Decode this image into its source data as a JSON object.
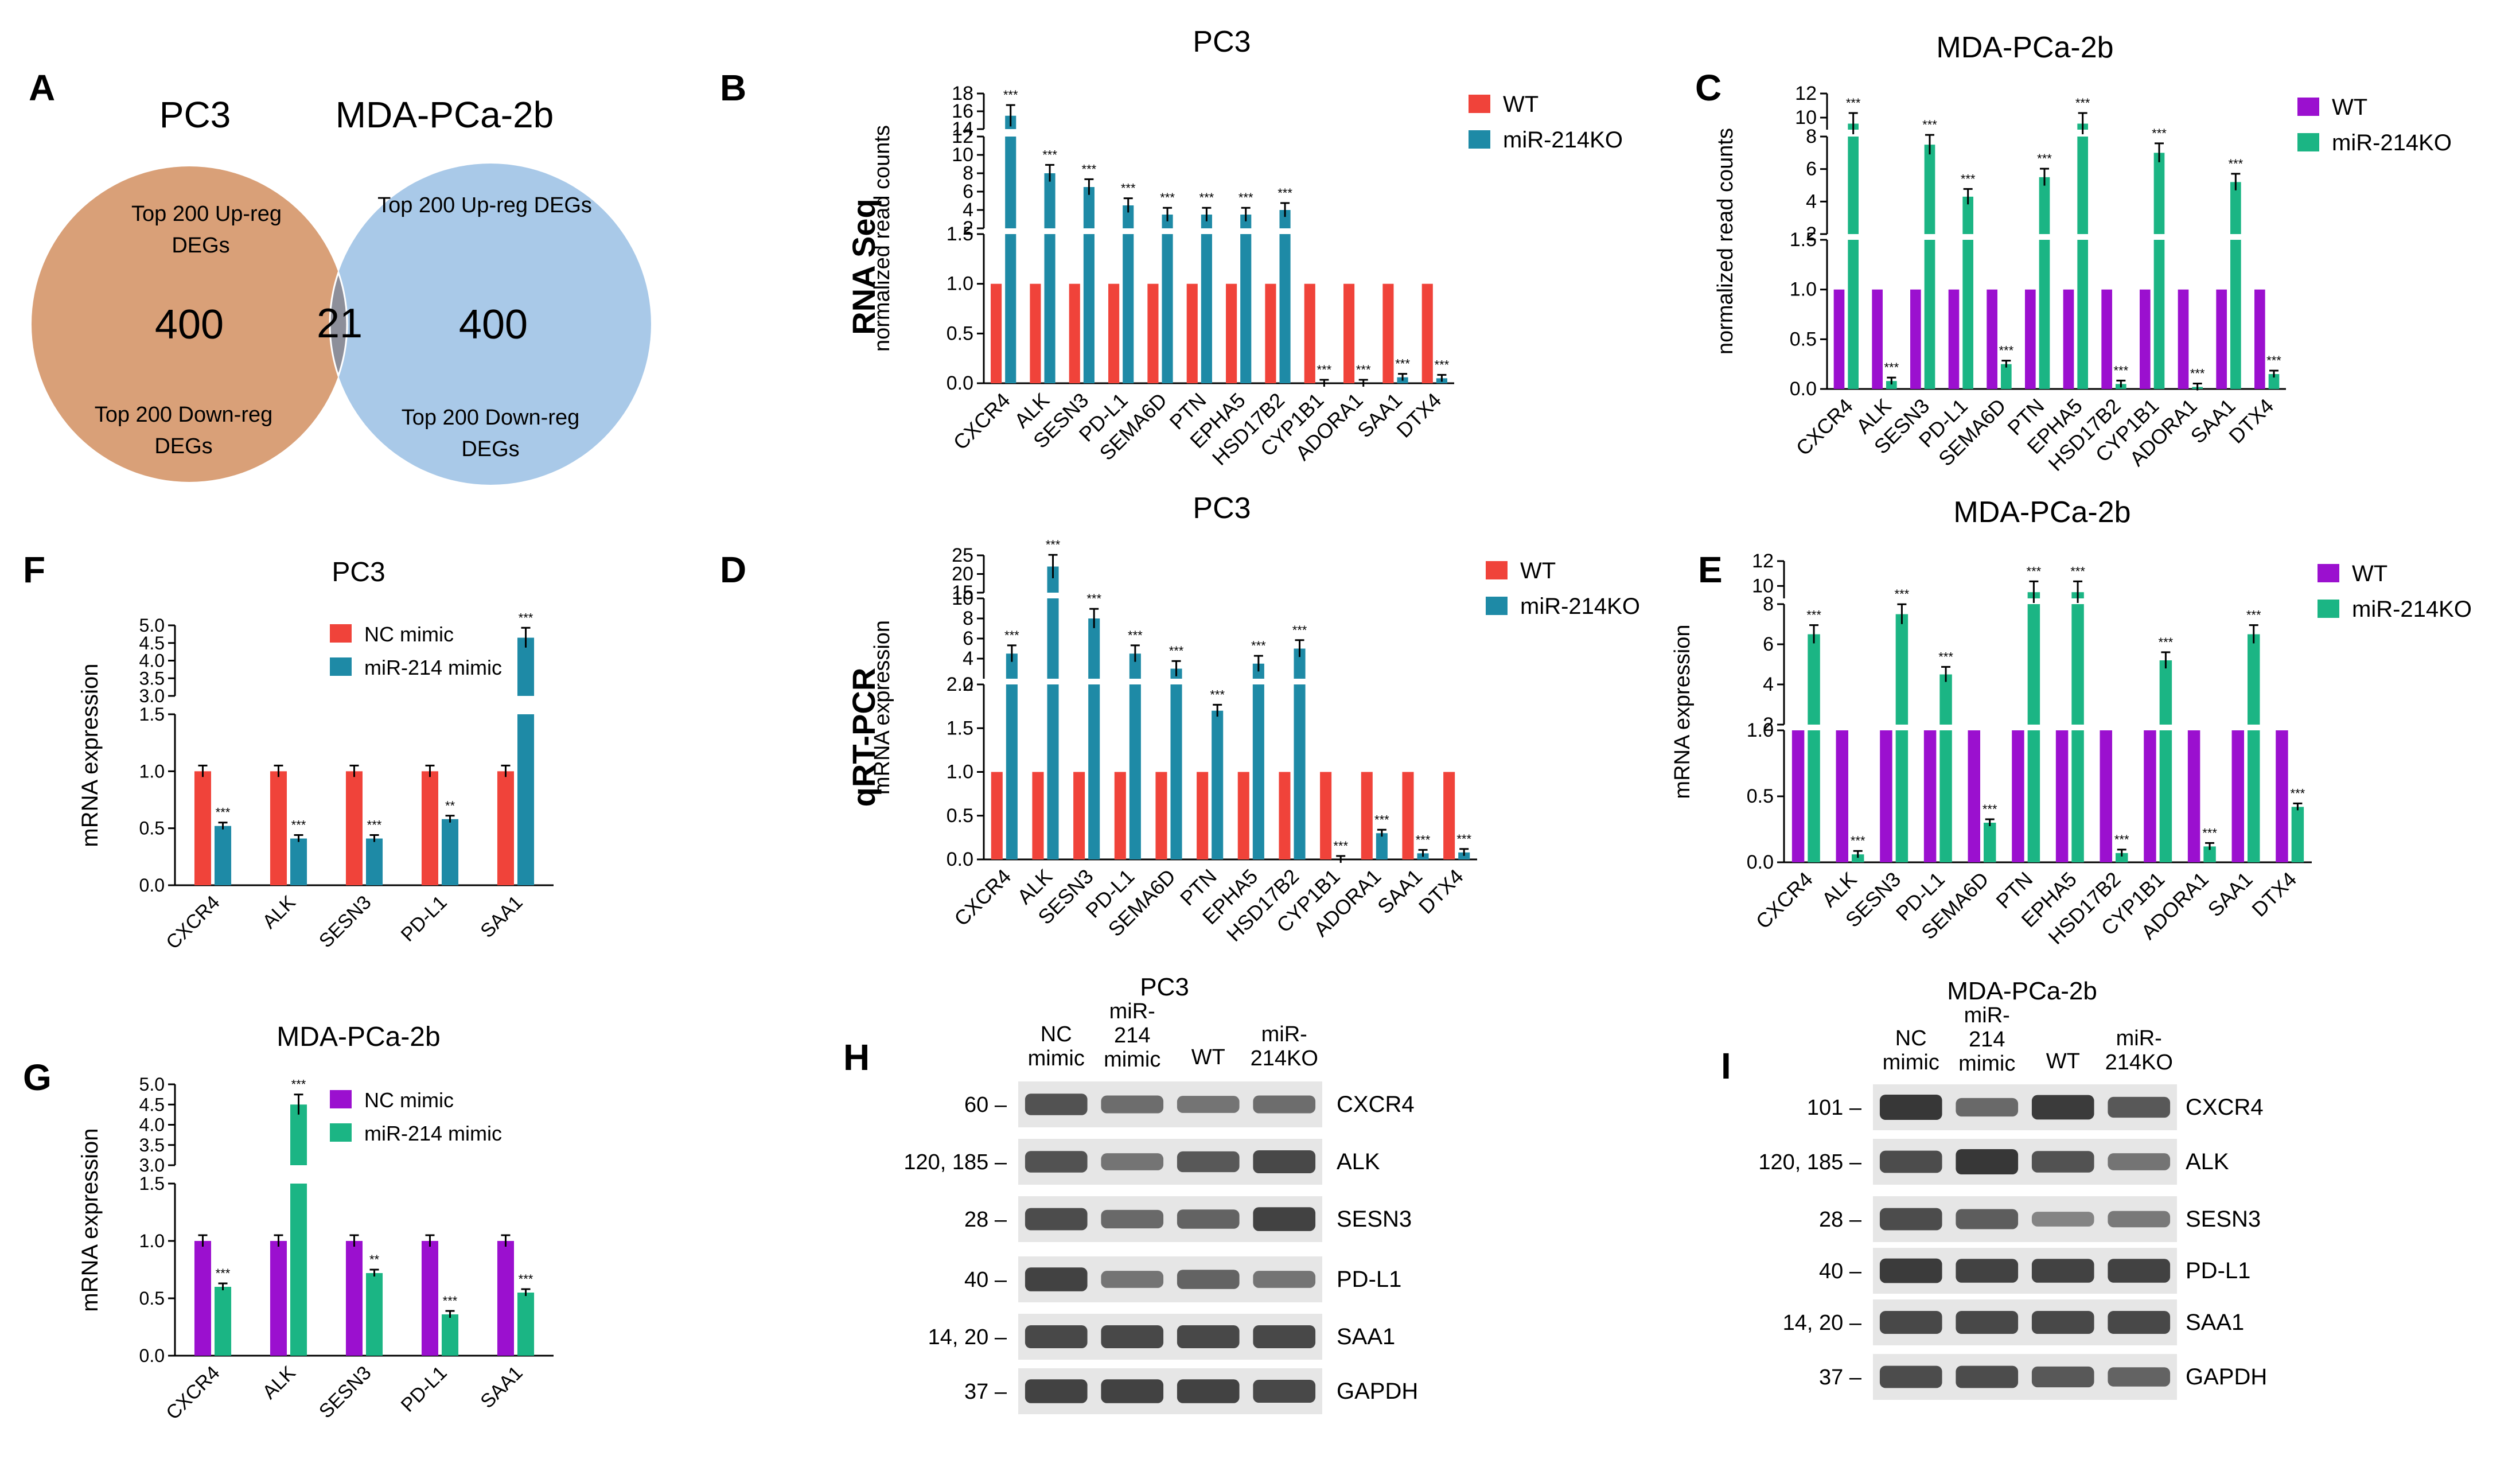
{
  "colors": {
    "red": "#f0433a",
    "blue": "#1e8aa6",
    "purple": "#9b10cf",
    "green": "#1bb584",
    "venn_left": "#d9a078",
    "venn_right": "#a9c9e8",
    "venn_overlap": "#8d8f9a",
    "blot_bg": "#e6e6e6",
    "band": "#2d2d2d"
  },
  "panel_letters": {
    "A": "A",
    "B": "B",
    "C": "C",
    "D": "D",
    "E": "E",
    "F": "F",
    "G": "G",
    "H": "H",
    "I": "I"
  },
  "venn": {
    "left_title": "PC3",
    "right_title": "MDA-PCa-2b",
    "left_top_line1": "Top 200 Up-reg",
    "left_top_line2": "DEGs",
    "left_count": "400",
    "left_bottom_line1": "Top 200 Down-reg",
    "left_bottom_line2": "DEGs",
    "overlap_count": "21",
    "right_top": "Top 200 Up-reg DEGs",
    "right_count": "400",
    "right_bottom_line1": "Top 200 Down-reg",
    "right_bottom_line2": "DEGs"
  },
  "row_labels": {
    "rnaseq": "RNA Seq",
    "qrtpcr": "qRT-PCR"
  },
  "chart_data": [
    {
      "id": "B",
      "type": "bar",
      "title": "PC3",
      "ylabel": "normalized read counts",
      "categories": [
        "CXCR4",
        "ALK",
        "SESN3",
        "PD-L1",
        "SEMA6D",
        "PTN",
        "EPHA5",
        "HSD17B2",
        "CYP1B1",
        "ADORA1",
        "SAA1",
        "DTX4"
      ],
      "series": [
        {
          "name": "WT",
          "color": "#f0433a",
          "values": [
            1,
            1,
            1,
            1,
            1,
            1,
            1,
            1,
            1,
            1,
            1,
            1
          ]
        },
        {
          "name": "miR-214KO",
          "color": "#1e8aa6",
          "values": [
            15.5,
            8,
            6.5,
            4.5,
            3.5,
            3.5,
            3.5,
            4,
            0,
            0,
            0.06,
            0.05
          ]
        }
      ],
      "y_axis_segments": [
        {
          "range": [
            0,
            1.5
          ],
          "ticks": [
            "0.0",
            "0.5",
            "1.0",
            "1.5"
          ]
        },
        {
          "range": [
            2,
            12
          ],
          "ticks": [
            "2",
            "4",
            "6",
            "8",
            "10",
            "12"
          ]
        },
        {
          "range": [
            14,
            18
          ],
          "ticks": [
            "14",
            "16",
            "18"
          ]
        }
      ],
      "significance": "***"
    },
    {
      "id": "C",
      "type": "bar",
      "title": "MDA-PCa-2b",
      "ylabel": "normalized read counts",
      "categories": [
        "CXCR4",
        "ALK",
        "SESN3",
        "PD-L1",
        "SEMA6D",
        "PTN",
        "EPHA5",
        "HSD17B2",
        "CYP1B1",
        "ADORA1",
        "SAA1",
        "DTX4"
      ],
      "series": [
        {
          "name": "WT",
          "color": "#9b10cf",
          "values": [
            1,
            1,
            1,
            1,
            1,
            1,
            1,
            1,
            1,
            1,
            1,
            1
          ]
        },
        {
          "name": "miR-214KO",
          "color": "#1bb584",
          "values": [
            9.5,
            0.08,
            7.5,
            4.3,
            0.25,
            5.5,
            9.5,
            0.05,
            7,
            0.02,
            5.2,
            0.15
          ]
        }
      ],
      "y_axis_segments": [
        {
          "range": [
            0,
            1.5
          ],
          "ticks": [
            "0.0",
            "0.5",
            "1.0",
            "1.5"
          ]
        },
        {
          "range": [
            2,
            8
          ],
          "ticks": [
            "2",
            "4",
            "6",
            "8"
          ]
        },
        {
          "range": [
            9,
            12
          ],
          "ticks": [
            "10",
            "12"
          ]
        }
      ],
      "significance": "***"
    },
    {
      "id": "D",
      "type": "bar",
      "title": "PC3",
      "ylabel": "mRNA expression",
      "categories": [
        "CXCR4",
        "ALK",
        "SESN3",
        "PD-L1",
        "SEMA6D",
        "PTN",
        "EPHA5",
        "HSD17B2",
        "CYP1B1",
        "ADORA1",
        "SAA1",
        "DTX4"
      ],
      "series": [
        {
          "name": "WT",
          "color": "#f0433a",
          "values": [
            1,
            1,
            1,
            1,
            1,
            1,
            1,
            1,
            1,
            1,
            1,
            1
          ]
        },
        {
          "name": "miR-214KO",
          "color": "#1e8aa6",
          "values": [
            4.5,
            22,
            8,
            4.5,
            3,
            1.7,
            3.5,
            5,
            0,
            0.3,
            0.07,
            0.08
          ]
        }
      ],
      "y_axis_segments": [
        {
          "range": [
            0,
            2
          ],
          "ticks": [
            "0.0",
            "0.5",
            "1.0",
            "1.5",
            "2.0"
          ]
        },
        {
          "range": [
            2,
            10
          ],
          "ticks": [
            "2",
            "4",
            "6",
            "8",
            "10"
          ]
        },
        {
          "range": [
            15,
            25
          ],
          "ticks": [
            "15",
            "20",
            "25"
          ]
        }
      ],
      "significance": "***"
    },
    {
      "id": "E",
      "type": "bar",
      "title": "MDA-PCa-2b",
      "ylabel": "mRNA expression",
      "categories": [
        "CXCR4",
        "ALK",
        "SESN3",
        "PD-L1",
        "SEMA6D",
        "PTN",
        "EPHA5",
        "HSD17B2",
        "CYP1B1",
        "ADORA1",
        "SAA1",
        "DTX4"
      ],
      "series": [
        {
          "name": "WT",
          "color": "#9b10cf",
          "values": [
            1,
            1,
            1,
            1,
            1,
            1,
            1,
            1,
            1,
            1,
            1,
            1
          ]
        },
        {
          "name": "miR-214KO",
          "color": "#1bb584",
          "values": [
            6.5,
            0.06,
            7.5,
            4.5,
            0.3,
            9.5,
            9.5,
            0.07,
            5.2,
            0.12,
            6.5,
            0.42
          ]
        }
      ],
      "y_axis_segments": [
        {
          "range": [
            0,
            1
          ],
          "ticks": [
            "0.0",
            "0.5",
            "1.0"
          ]
        },
        {
          "range": [
            2,
            8
          ],
          "ticks": [
            "2",
            "4",
            "6",
            "8"
          ]
        },
        {
          "range": [
            9,
            12
          ],
          "ticks": [
            "10",
            "12"
          ]
        }
      ],
      "significance": "***"
    },
    {
      "id": "F",
      "type": "bar",
      "title": "PC3",
      "ylabel": "mRNA expression",
      "categories": [
        "CXCR4",
        "ALK",
        "SESN3",
        "PD-L1",
        "SAA1"
      ],
      "series": [
        {
          "name": "NC mimic",
          "color": "#f0433a",
          "values": [
            1,
            1,
            1,
            1,
            1
          ]
        },
        {
          "name": "miR-214 mimic",
          "color": "#1e8aa6",
          "values": [
            0.52,
            0.41,
            0.41,
            0.58,
            4.65
          ]
        }
      ],
      "y_axis_segments": [
        {
          "range": [
            0,
            1.5
          ],
          "ticks": [
            "0.0",
            "0.5",
            "1.0",
            "1.5"
          ]
        },
        {
          "range": [
            3,
            5
          ],
          "ticks": [
            "3.0",
            "3.5",
            "4.0",
            "4.5",
            "5.0"
          ]
        }
      ],
      "significance": [
        "***",
        "***",
        "***",
        "**",
        "***"
      ]
    },
    {
      "id": "G",
      "type": "bar",
      "title": "MDA-PCa-2b",
      "ylabel": "mRNA expression",
      "categories": [
        "CXCR4",
        "ALK",
        "SESN3",
        "PD-L1",
        "SAA1"
      ],
      "series": [
        {
          "name": "NC mimic",
          "color": "#9b10cf",
          "values": [
            1,
            1,
            1,
            1,
            1
          ]
        },
        {
          "name": "miR-214 mimic",
          "color": "#1bb584",
          "values": [
            0.6,
            4.5,
            0.72,
            0.36,
            0.55
          ]
        }
      ],
      "y_axis_segments": [
        {
          "range": [
            0,
            1.5
          ],
          "ticks": [
            "0.0",
            "0.5",
            "1.0",
            "1.5"
          ]
        },
        {
          "range": [
            3,
            5
          ],
          "ticks": [
            "3.0",
            "3.5",
            "4.0",
            "4.5",
            "5.0"
          ]
        }
      ],
      "significance": [
        "***",
        "***",
        "**",
        "***",
        "***"
      ]
    }
  ],
  "western_blots": [
    {
      "id": "H",
      "title": "PC3",
      "lanes": [
        [
          "NC",
          "mimic"
        ],
        [
          "miR-",
          "214",
          "mimic"
        ],
        [
          "WT"
        ],
        [
          "miR-",
          "214KO"
        ]
      ],
      "rows": [
        {
          "mw": "60 –",
          "protein": "CXCR4",
          "intensity": [
            0.75,
            0.5,
            0.45,
            0.5
          ]
        },
        {
          "mw": "120, 185 –",
          "protein": "ALK",
          "intensity": [
            0.75,
            0.45,
            0.7,
            0.85
          ]
        },
        {
          "mw": "28 –",
          "protein": "SESN3",
          "intensity": [
            0.8,
            0.55,
            0.6,
            0.9
          ]
        },
        {
          "mw": "40 –",
          "protein": "PD-L1",
          "intensity": [
            0.9,
            0.45,
            0.6,
            0.45
          ]
        },
        {
          "mw": "14, 20 –",
          "protein": "SAA1",
          "intensity": [
            0.85,
            0.85,
            0.85,
            0.85
          ]
        },
        {
          "mw": "37 –",
          "protein": "GAPDH",
          "intensity": [
            0.9,
            0.9,
            0.9,
            0.85
          ]
        }
      ]
    },
    {
      "id": "I",
      "title": "MDA-PCa-2b",
      "lanes": [
        [
          "NC",
          "mimic"
        ],
        [
          "miR-",
          "214",
          "mimic"
        ],
        [
          "WT"
        ],
        [
          "miR-",
          "214KO"
        ]
      ],
      "rows": [
        {
          "mw": "101 –",
          "protein": "CXCR4",
          "intensity": [
            1,
            0.55,
            0.95,
            0.7
          ]
        },
        {
          "mw": "120, 185 –",
          "protein": "ALK",
          "intensity": [
            0.8,
            1,
            0.75,
            0.45
          ]
        },
        {
          "mw": "28 –",
          "protein": "SESN3",
          "intensity": [
            0.8,
            0.65,
            0.3,
            0.4
          ]
        },
        {
          "mw": "40 –",
          "protein": "PD-L1",
          "intensity": [
            0.95,
            0.9,
            0.9,
            0.9
          ]
        },
        {
          "mw": "14, 20 –",
          "protein": "SAA1",
          "intensity": [
            0.85,
            0.85,
            0.85,
            0.85
          ]
        },
        {
          "mw": "37 –",
          "protein": "GAPDH",
          "intensity": [
            0.8,
            0.8,
            0.7,
            0.6
          ]
        }
      ]
    }
  ]
}
